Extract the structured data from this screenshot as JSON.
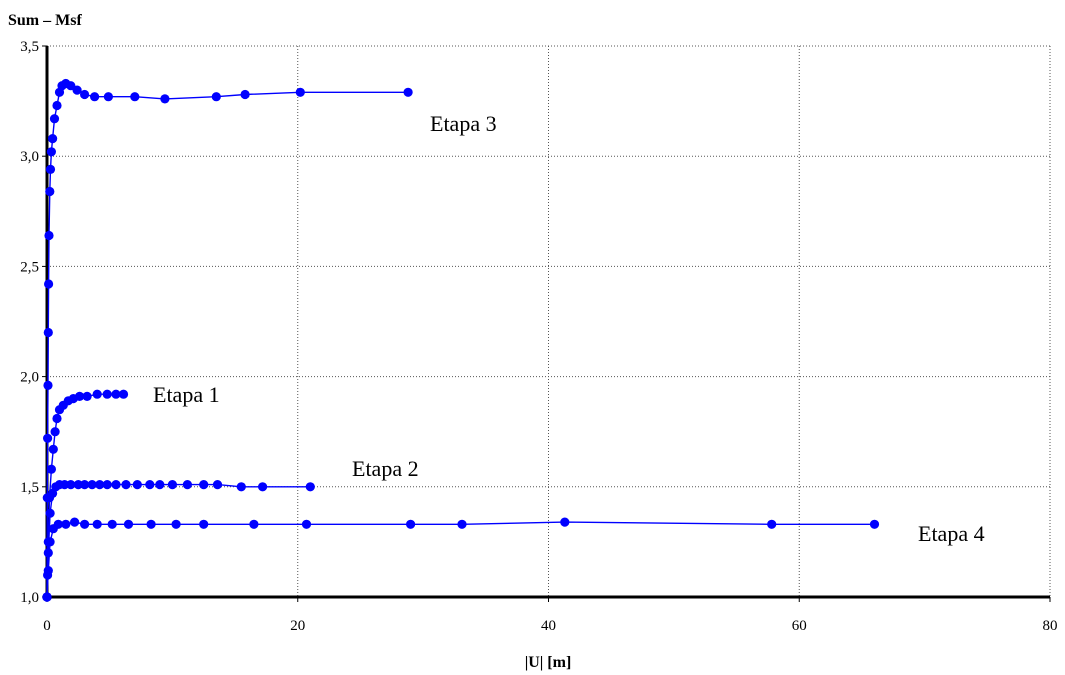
{
  "chart_data": {
    "type": "line",
    "title": "",
    "ylabel": "Sum – Msf",
    "xlabel": "|U| [m]",
    "xlim": [
      0,
      80
    ],
    "ylim": [
      1.0,
      3.5
    ],
    "xticks": [
      0,
      20,
      40,
      60,
      80
    ],
    "xtick_labels": [
      "0",
      "20",
      "40",
      "60",
      "80"
    ],
    "yticks": [
      1.0,
      1.5,
      2.0,
      2.5,
      3.0,
      3.5
    ],
    "ytick_labels": [
      "1,0",
      "1,5",
      "2,0",
      "2,5",
      "3,0",
      "3,5"
    ],
    "grid": true,
    "grid_style": "dotted",
    "series_color": "#0000ff",
    "series": [
      {
        "name": "Etapa 1",
        "points": [
          [
            0.0,
            1.0
          ],
          [
            0.05,
            1.1
          ],
          [
            0.1,
            1.25
          ],
          [
            0.2,
            1.45
          ],
          [
            0.35,
            1.58
          ],
          [
            0.5,
            1.67
          ],
          [
            0.65,
            1.75
          ],
          [
            0.8,
            1.81
          ],
          [
            1.0,
            1.85
          ],
          [
            1.3,
            1.87
          ],
          [
            1.7,
            1.89
          ],
          [
            2.1,
            1.9
          ],
          [
            2.6,
            1.91
          ],
          [
            3.2,
            1.91
          ],
          [
            4.0,
            1.92
          ],
          [
            4.8,
            1.92
          ],
          [
            5.5,
            1.92
          ],
          [
            6.1,
            1.92
          ]
        ]
      },
      {
        "name": "Etapa 2",
        "points": [
          [
            0.0,
            1.0
          ],
          [
            0.1,
            1.2
          ],
          [
            0.25,
            1.38
          ],
          [
            0.45,
            1.47
          ],
          [
            0.7,
            1.5
          ],
          [
            1.0,
            1.51
          ],
          [
            1.4,
            1.51
          ],
          [
            1.9,
            1.51
          ],
          [
            2.5,
            1.51
          ],
          [
            3.0,
            1.51
          ],
          [
            3.6,
            1.51
          ],
          [
            4.2,
            1.51
          ],
          [
            4.8,
            1.51
          ],
          [
            5.5,
            1.51
          ],
          [
            6.3,
            1.51
          ],
          [
            7.2,
            1.51
          ],
          [
            8.2,
            1.51
          ],
          [
            9.0,
            1.51
          ],
          [
            10.0,
            1.51
          ],
          [
            11.2,
            1.51
          ],
          [
            12.5,
            1.51
          ],
          [
            13.6,
            1.51
          ],
          [
            15.5,
            1.5
          ],
          [
            17.2,
            1.5
          ],
          [
            21.0,
            1.5
          ]
        ]
      },
      {
        "name": "Etapa 3",
        "points": [
          [
            0.0,
            1.0
          ],
          [
            0.02,
            1.45
          ],
          [
            0.05,
            1.72
          ],
          [
            0.08,
            1.96
          ],
          [
            0.1,
            2.2
          ],
          [
            0.13,
            2.42
          ],
          [
            0.16,
            2.64
          ],
          [
            0.22,
            2.84
          ],
          [
            0.28,
            2.94
          ],
          [
            0.35,
            3.02
          ],
          [
            0.45,
            3.08
          ],
          [
            0.6,
            3.17
          ],
          [
            0.8,
            3.23
          ],
          [
            1.0,
            3.29
          ],
          [
            1.2,
            3.32
          ],
          [
            1.5,
            3.33
          ],
          [
            1.9,
            3.32
          ],
          [
            2.4,
            3.3
          ],
          [
            3.0,
            3.28
          ],
          [
            3.8,
            3.27
          ],
          [
            4.9,
            3.27
          ],
          [
            7.0,
            3.27
          ],
          [
            9.4,
            3.26
          ],
          [
            13.5,
            3.27
          ],
          [
            15.8,
            3.28
          ],
          [
            20.2,
            3.29
          ],
          [
            28.8,
            3.29
          ]
        ]
      },
      {
        "name": "Etapa 4",
        "points": [
          [
            0.0,
            1.0
          ],
          [
            0.1,
            1.12
          ],
          [
            0.25,
            1.25
          ],
          [
            0.5,
            1.31
          ],
          [
            0.9,
            1.33
          ],
          [
            1.5,
            1.33
          ],
          [
            2.2,
            1.34
          ],
          [
            3.0,
            1.33
          ],
          [
            4.0,
            1.33
          ],
          [
            5.2,
            1.33
          ],
          [
            6.5,
            1.33
          ],
          [
            8.3,
            1.33
          ],
          [
            10.3,
            1.33
          ],
          [
            12.5,
            1.33
          ],
          [
            16.5,
            1.33
          ],
          [
            20.7,
            1.33
          ],
          [
            29.0,
            1.33
          ],
          [
            33.1,
            1.33
          ],
          [
            41.3,
            1.34
          ],
          [
            57.8,
            1.33
          ],
          [
            66.0,
            1.33
          ]
        ]
      }
    ]
  }
}
